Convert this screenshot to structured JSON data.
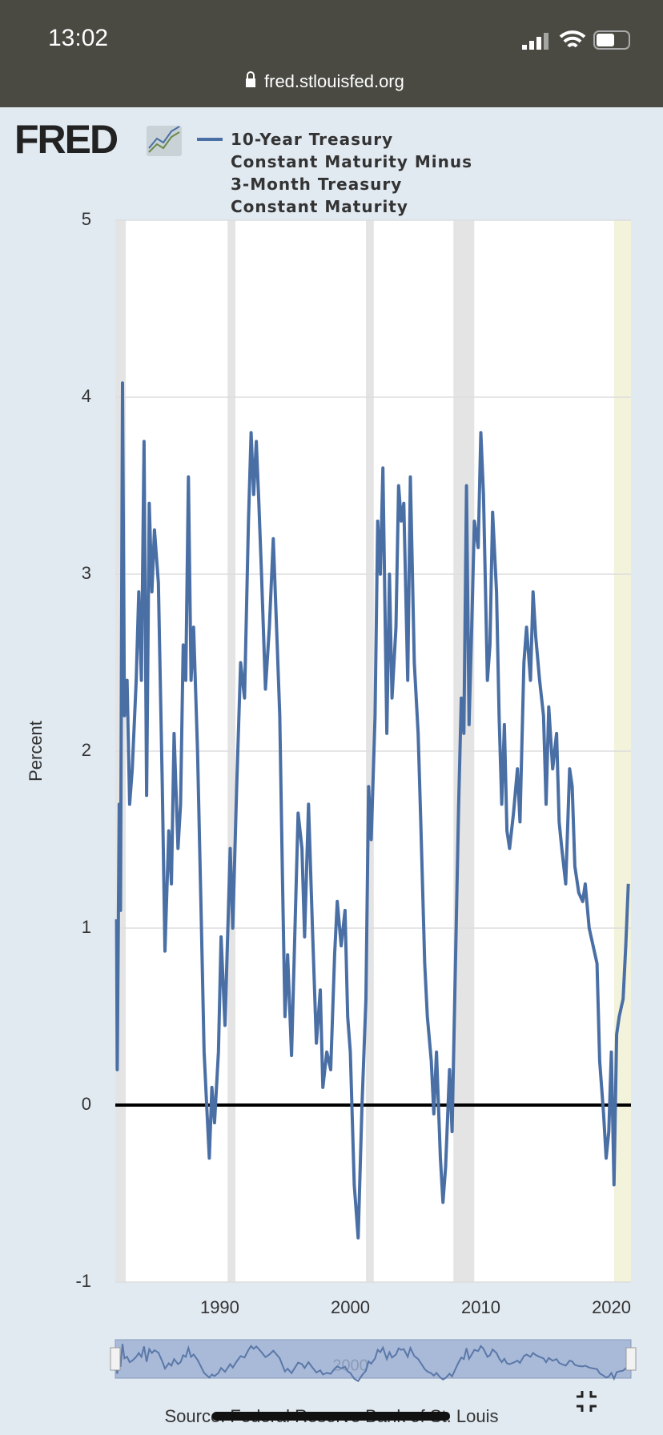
{
  "status_bar": {
    "time": "13:02",
    "url": "fred.stlouisfed.org"
  },
  "logo": "FRED",
  "source": "Source: Federal Reserve Bank of St. Louis",
  "chart_data": {
    "type": "line",
    "y_label": "Percent",
    "xlim": [
      1982,
      2021.5
    ],
    "xticks": [
      1990,
      2000,
      2010,
      2020
    ],
    "ylim": [
      -1,
      5
    ],
    "yticks": [
      -1,
      0,
      1,
      2,
      3,
      4,
      5
    ],
    "grid": true,
    "shading": [
      {
        "start": 1982,
        "end": 1982.8,
        "color": "#e4e4e4"
      },
      {
        "start": 1990.6,
        "end": 1991.2,
        "color": "#e4e4e4"
      },
      {
        "start": 2001.2,
        "end": 2001.8,
        "color": "#e4e4e4"
      },
      {
        "start": 2007.9,
        "end": 2009.5,
        "color": "#e4e4e4"
      },
      {
        "start": 2020.2,
        "end": 2021.5,
        "color": "#f3f3dc"
      }
    ],
    "series": [
      {
        "name": "10-Year Treasury Constant Maturity Minus 3-Month Treasury Constant Maturity",
        "color": "#4a6fa5",
        "x": [
          1982.1,
          1982.15,
          1982.3,
          1982.4,
          1982.55,
          1982.7,
          1982.9,
          1983.1,
          1983.3,
          1983.6,
          1983.8,
          1984.0,
          1984.2,
          1984.4,
          1984.6,
          1984.8,
          1985.0,
          1985.3,
          1985.6,
          1985.8,
          1986.1,
          1986.3,
          1986.5,
          1986.8,
          1987.0,
          1987.2,
          1987.4,
          1987.6,
          1987.8,
          1988.0,
          1988.3,
          1988.6,
          1988.8,
          1989.0,
          1989.2,
          1989.4,
          1989.6,
          1989.9,
          1990.1,
          1990.4,
          1990.8,
          1991.0,
          1991.3,
          1991.6,
          1991.9,
          1992.2,
          1992.4,
          1992.6,
          1992.8,
          1993.0,
          1993.2,
          1993.5,
          1993.8,
          1994.1,
          1994.4,
          1994.6,
          1994.8,
          1995.0,
          1995.2,
          1995.5,
          1995.8,
          1996.0,
          1996.3,
          1996.5,
          1996.8,
          1997.1,
          1997.4,
          1997.7,
          1997.9,
          1998.2,
          1998.5,
          1998.8,
          1999.0,
          1999.3,
          1999.6,
          1999.8,
          2000.0,
          2000.3,
          2000.6,
          2000.9,
          2001.2,
          2001.4,
          2001.6,
          2001.9,
          2002.1,
          2002.3,
          2002.5,
          2002.8,
          2003.0,
          2003.2,
          2003.5,
          2003.7,
          2003.9,
          2004.1,
          2004.4,
          2004.6,
          2004.9,
          2005.2,
          2005.4,
          2005.7,
          2005.9,
          2006.2,
          2006.4,
          2006.6,
          2006.9,
          2007.1,
          2007.3,
          2007.6,
          2007.8,
          2008.0,
          2008.3,
          2008.5,
          2008.7,
          2008.9,
          2009.1,
          2009.3,
          2009.5,
          2009.8,
          2010.0,
          2010.2,
          2010.5,
          2010.7,
          2010.9,
          2011.2,
          2011.4,
          2011.6,
          2011.8,
          2012.0,
          2012.2,
          2012.5,
          2012.8,
          2013.0,
          2013.3,
          2013.5,
          2013.8,
          2014.0,
          2014.2,
          2014.5,
          2014.8,
          2015.0,
          2015.2,
          2015.5,
          2015.8,
          2016.0,
          2016.2,
          2016.5,
          2016.8,
          2017.0,
          2017.2,
          2017.5,
          2017.8,
          2018.0,
          2018.3,
          2018.6,
          2018.9,
          2019.1,
          2019.4,
          2019.6,
          2019.8,
          2020.0,
          2020.2,
          2020.4,
          2020.6,
          2020.9,
          2021.1,
          2021.3
        ],
        "values": [
          1.05,
          0.2,
          1.7,
          1.1,
          4.08,
          2.2,
          2.4,
          1.7,
          1.9,
          2.4,
          2.9,
          2.4,
          3.75,
          1.75,
          3.4,
          2.9,
          3.25,
          2.95,
          1.8,
          0.87,
          1.55,
          1.25,
          2.1,
          1.45,
          1.7,
          2.6,
          2.4,
          3.55,
          2.4,
          2.7,
          2.0,
          1.0,
          0.3,
          0.0,
          -0.3,
          0.1,
          -0.1,
          0.3,
          0.95,
          0.45,
          1.45,
          1.0,
          1.8,
          2.5,
          2.3,
          3.3,
          3.8,
          3.45,
          3.75,
          3.4,
          3.0,
          2.35,
          2.7,
          3.2,
          2.6,
          2.2,
          1.3,
          0.5,
          0.85,
          0.28,
          1.1,
          1.65,
          1.45,
          0.95,
          1.7,
          1.0,
          0.35,
          0.65,
          0.1,
          0.3,
          0.2,
          0.85,
          1.15,
          0.9,
          1.1,
          0.5,
          0.3,
          -0.45,
          -0.75,
          0.0,
          0.6,
          1.8,
          1.5,
          2.2,
          3.3,
          3.0,
          3.6,
          2.1,
          3.0,
          2.3,
          2.7,
          3.5,
          3.3,
          3.4,
          2.4,
          3.55,
          2.5,
          2.1,
          1.6,
          0.8,
          0.5,
          0.25,
          -0.05,
          0.3,
          -0.3,
          -0.55,
          -0.35,
          0.2,
          -0.15,
          0.6,
          1.7,
          2.3,
          2.1,
          3.5,
          2.15,
          2.7,
          3.3,
          3.15,
          3.8,
          3.45,
          2.4,
          2.6,
          3.35,
          2.9,
          2.2,
          1.7,
          2.15,
          1.55,
          1.45,
          1.65,
          1.9,
          1.6,
          2.5,
          2.7,
          2.4,
          2.9,
          2.65,
          2.4,
          2.2,
          1.7,
          2.25,
          1.9,
          2.1,
          1.6,
          1.45,
          1.25,
          1.9,
          1.8,
          1.35,
          1.2,
          1.15,
          1.25,
          1.0,
          0.9,
          0.8,
          0.25,
          -0.05,
          -0.3,
          -0.15,
          0.3,
          -0.45,
          0.4,
          0.5,
          0.6,
          0.9,
          1.25
        ]
      }
    ]
  }
}
